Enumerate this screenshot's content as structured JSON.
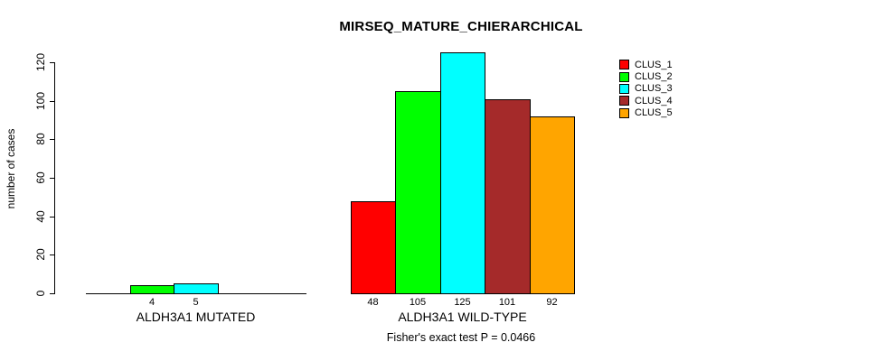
{
  "chart_data": {
    "type": "bar",
    "title": "MIRSEQ_MATURE_CHIERARCHICAL",
    "ylabel": "number of cases",
    "xlabel": "",
    "ylim": [
      0,
      120
    ],
    "yticks": [
      0,
      20,
      40,
      60,
      80,
      100,
      120
    ],
    "grid": false,
    "legend_position": "right",
    "categories": [
      "ALDH3A1 MUTATED",
      "ALDH3A1 WILD-TYPE"
    ],
    "series": [
      {
        "name": "CLUS_1",
        "color": "#FF0000",
        "values": [
          0,
          48
        ]
      },
      {
        "name": "CLUS_2",
        "color": "#00FF00",
        "values": [
          4,
          105
        ]
      },
      {
        "name": "CLUS_3",
        "color": "#00FFFF",
        "values": [
          5,
          125
        ]
      },
      {
        "name": "CLUS_4",
        "color": "#A52A2A",
        "values": [
          0,
          101
        ]
      },
      {
        "name": "CLUS_5",
        "color": "#FFA500",
        "values": [
          0,
          92
        ]
      }
    ],
    "bar_value_labels": {
      "shown_for_nonzero_only": true,
      "labels": [
        [
          null,
          "4",
          "5",
          null,
          null
        ],
        [
          "48",
          "105",
          "125",
          "101",
          "92"
        ]
      ]
    },
    "note": "Fisher's exact test P = 0.0466"
  }
}
